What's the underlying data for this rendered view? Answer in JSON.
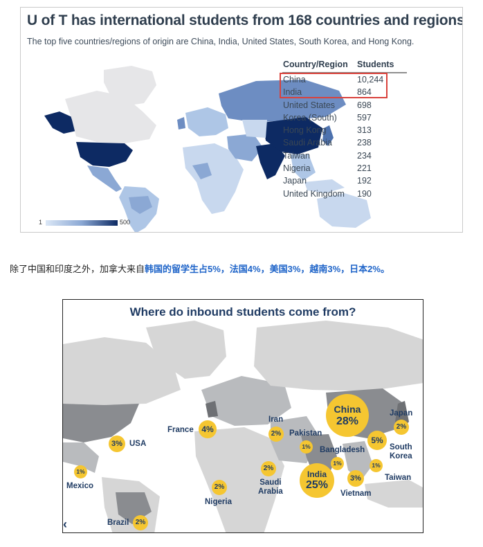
{
  "panel1": {
    "title": "U of T has international students from 168 countries and regions.",
    "subtitle": "The top five countries/regions of origin are China, India, United States, South Korea, and Hong Kong.",
    "legend": {
      "min": "1",
      "max": "500",
      "colors": [
        "#dbe7f6",
        "#0d2a63"
      ]
    },
    "table": {
      "headers": [
        "Country/Region",
        "Students"
      ],
      "rows": [
        {
          "name": "China",
          "value": "10,244"
        },
        {
          "name": "India",
          "value": "864"
        },
        {
          "name": "United States",
          "value": "698"
        },
        {
          "name": "Korea (South)",
          "value": "597"
        },
        {
          "name": "Hong Kong",
          "value": "313"
        },
        {
          "name": "Saudi Arabia",
          "value": "238"
        },
        {
          "name": "Taiwan",
          "value": "234"
        },
        {
          "name": "Nigeria",
          "value": "221"
        },
        {
          "name": "Japan",
          "value": "192"
        },
        {
          "name": "United Kingdom",
          "value": "190"
        }
      ],
      "highlight_color": "#d9413b"
    }
  },
  "note": {
    "plain": "除了中国和印度之外，加拿大来自",
    "highlight": "韩国的留学生占5%，法国4%，美国3%，越南3%，日本2%。"
  },
  "panel2": {
    "title": "Where do inbound students come from?",
    "bubbles": {
      "china": {
        "name": "China",
        "pct": "28%"
      },
      "india": {
        "name": "India",
        "pct": "25%"
      },
      "south_korea": {
        "pct": "5%"
      },
      "france": {
        "pct": "4%"
      },
      "usa": {
        "pct": "3%"
      },
      "vietnam": {
        "pct": "3%"
      },
      "japan": {
        "pct": "2%"
      },
      "iran": {
        "pct": "2%"
      },
      "saudi": {
        "pct": "2%"
      },
      "nigeria": {
        "pct": "2%"
      },
      "brazil": {
        "pct": "2%"
      },
      "mexico": {
        "pct": "1%"
      },
      "pakistan": {
        "pct": "1%"
      },
      "bangladesh": {
        "pct": "1%"
      },
      "taiwan": {
        "pct": "1%"
      }
    },
    "labels": {
      "japan": "Japan",
      "iran": "Iran",
      "pakistan": "Pakistan",
      "bangladesh": "Bangladesh",
      "south_korea": "South\nKorea",
      "france": "France",
      "usa": "USA",
      "mexico": "Mexico",
      "saudi": "Saudi\nArabia",
      "nigeria": "Nigeria",
      "taiwan": "Taiwan",
      "vietnam": "Vietnam",
      "brazil": "Brazil"
    },
    "bubble_color": "#f5c631",
    "text_color": "#1f3b63"
  }
}
